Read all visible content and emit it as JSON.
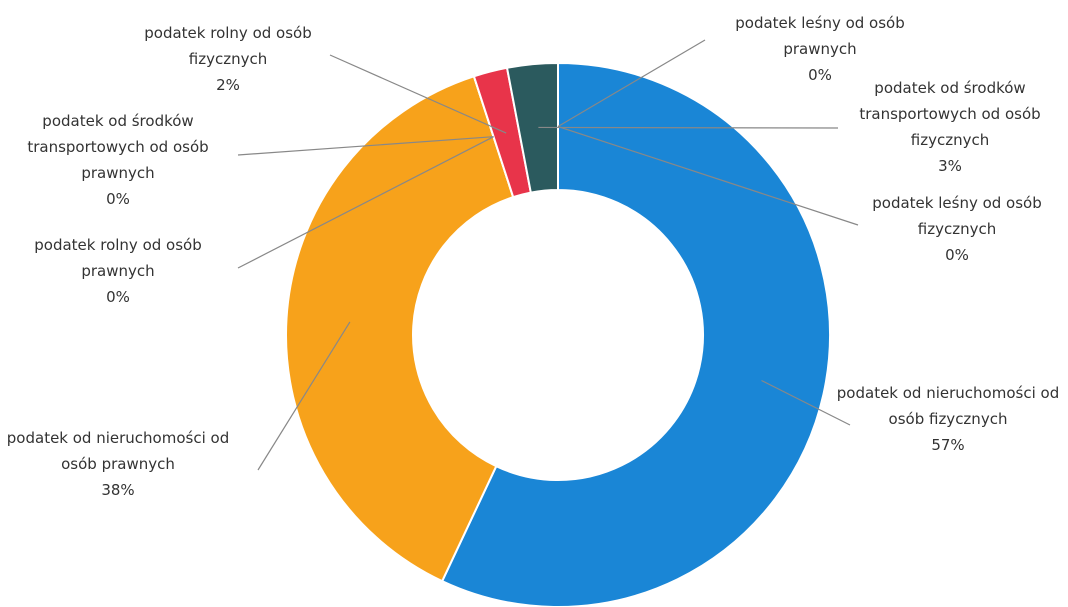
{
  "chart_data": {
    "type": "pie",
    "categories": [
      "podatek od nieruchomości od osób fizycznych",
      "podatek od nieruchomości od osób prawnych",
      "podatek rolny od osób prawnych",
      "podatek od środków transportowych od osób prawnych",
      "podatek rolny od osób fizycznych",
      "podatek od środków transportowych od osób fizycznych",
      "podatek leśny od osób fizycznych",
      "podatek leśny od osób prawnych"
    ],
    "values": [
      57,
      38,
      0,
      0,
      2,
      3,
      0,
      0
    ],
    "value_labels": [
      "57%",
      "38%",
      "0%",
      "0%",
      "2%",
      "3%",
      "0%",
      "0%"
    ],
    "colors": [
      "#1a86d6",
      "#f7a21b",
      "#9e9e9e",
      "#7a7a7a",
      "#e8344a",
      "#2b5a5e",
      "#9e9e9e",
      "#5a6e70"
    ]
  }
}
